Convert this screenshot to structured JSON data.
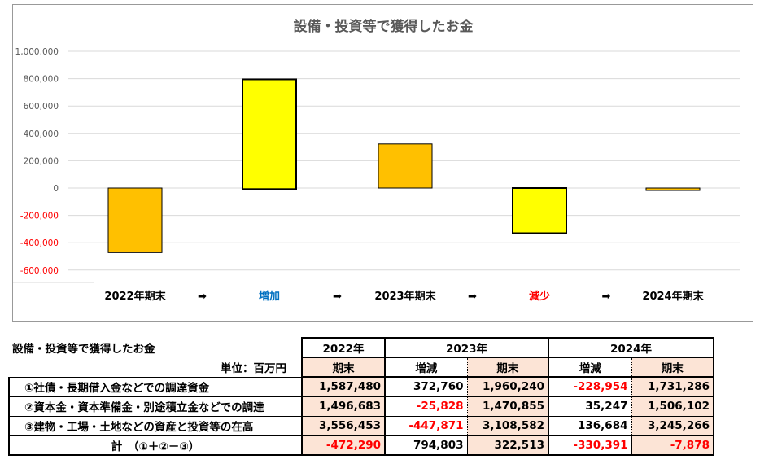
{
  "colors": {
    "total": "#FFC000",
    "change": "#FFFF00",
    "grid": "#D9D9D9",
    "increase_label": "#0070C0",
    "decrease_label": "#FF0000",
    "negative": "#FF0000",
    "peach": "#FCE4D6"
  },
  "chart_data": {
    "type": "bar",
    "subtype": "waterfall",
    "title": "設備・投資等で獲得したお金",
    "categories": [
      "2022年期末",
      "増加",
      "2023年期末",
      "減少",
      "2024年期末"
    ],
    "arrow_symbol": "➡",
    "bars": [
      {
        "name": "2022年期末",
        "kind": "total",
        "start": 0,
        "end": -472290
      },
      {
        "name": "増加",
        "kind": "change",
        "start": -7878,
        "end": 794803
      },
      {
        "name": "2023年期末",
        "kind": "total",
        "start": 0,
        "end": 322513
      },
      {
        "name": "減少",
        "kind": "change",
        "start": 0,
        "end": -330391
      },
      {
        "name": "2024年期末",
        "kind": "total",
        "start": 0,
        "end": -7878
      }
    ],
    "yticks": [
      1000000,
      800000,
      600000,
      400000,
      200000,
      0,
      -200000,
      -400000,
      -600000
    ],
    "ytick_labels": [
      "1,000,000",
      "800,000",
      "600,000",
      "400,000",
      "200,000",
      "0",
      "-200,000",
      "-400,000",
      "-600,000"
    ],
    "ylim": [
      -700000,
      1000000
    ],
    "grid": true,
    "xlabel": "",
    "ylabel": ""
  },
  "table": {
    "title": "設備・投資等で獲得したお金",
    "unit": "単位：百万円",
    "years": [
      "2022年",
      "2023年",
      "2024年"
    ],
    "subheaders": [
      "期末",
      "増減",
      "期末",
      "増減",
      "期末"
    ],
    "rows": [
      {
        "label": "①社債・長期借入金などでの調達資金",
        "values": [
          "1,587,480",
          "372,760",
          "1,960,240",
          "-228,954",
          "1,731,286"
        ]
      },
      {
        "label": "②資本金・資本準備金・別途積立金などでの調達",
        "values": [
          "1,496,683",
          "-25,828",
          "1,470,855",
          "35,247",
          "1,506,102"
        ]
      },
      {
        "label": "③建物・工場・土地などの資産と投資等の在高",
        "values": [
          "3,556,453",
          "-447,871",
          "3,108,582",
          "136,684",
          "3,245,266"
        ]
      },
      {
        "label": "計　（①＋②－③）",
        "values": [
          "-472,290",
          "794,803",
          "322,513",
          "-330,391",
          "-7,878"
        ]
      }
    ]
  }
}
